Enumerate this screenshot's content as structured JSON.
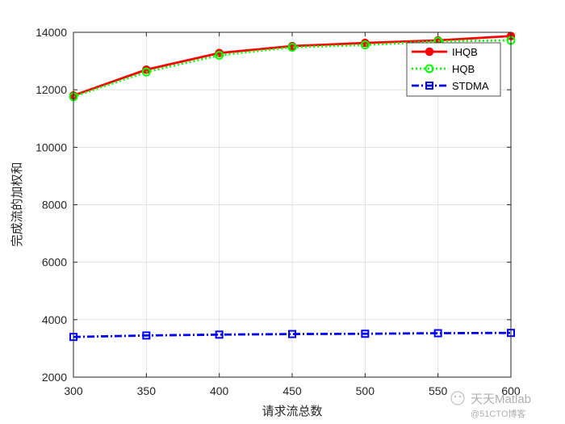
{
  "chart_data": {
    "type": "line",
    "xlabel": "请求流总数",
    "ylabel": "完成流的加权和",
    "x": [
      300,
      350,
      400,
      450,
      500,
      550,
      600
    ],
    "xlim": [
      300,
      600
    ],
    "ylim": [
      2000,
      14000
    ],
    "xticks": [
      "300",
      "350",
      "400",
      "450",
      "500",
      "550",
      "600"
    ],
    "yticks": [
      "2000",
      "4000",
      "6000",
      "8000",
      "10000",
      "12000",
      "14000"
    ],
    "grid": true,
    "legend_position": "top-right",
    "series": [
      {
        "name": "IHQB",
        "color": "#ff0000",
        "marker": "circle-filled",
        "line": "solid",
        "values": [
          11800,
          12700,
          13280,
          13520,
          13630,
          13720,
          13870
        ]
      },
      {
        "name": "HQB",
        "color": "#00ff00",
        "marker": "circle-open",
        "line": "dotted",
        "values": [
          11760,
          12620,
          13200,
          13480,
          13560,
          13690,
          13720
        ]
      },
      {
        "name": "STDMA",
        "color": "#0000ff",
        "marker": "square-open",
        "line": "dashdot",
        "values": [
          3400,
          3450,
          3480,
          3500,
          3510,
          3530,
          3540
        ]
      }
    ]
  },
  "watermark": {
    "brand": "天天Matlab",
    "site": "@51CTO博客"
  }
}
